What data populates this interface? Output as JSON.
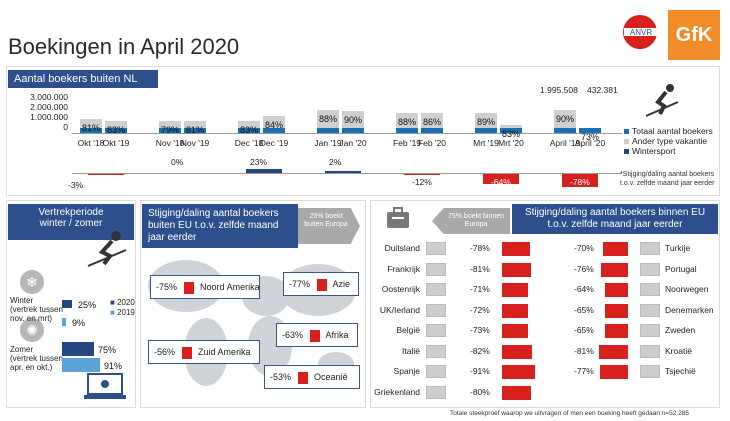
{
  "title": "Boekingen in April 2020",
  "logos": {
    "anvr_ring": "Ondernemers in reizen",
    "anvr": "ANVR",
    "gfk": "GfK"
  },
  "top": {
    "header": "Aantal boekers buiten NL",
    "yticks": [
      "3.000.000",
      "2.000.000",
      "1.000.000",
      "0"
    ],
    "top_values": [
      "1.995.508",
      "432.381"
    ],
    "pairs": [
      {
        "a": "Okt '18",
        "b": "Okt '19",
        "pa": "81%",
        "pb": "83%",
        "ga": 0.34,
        "gb": 0.3
      },
      {
        "a": "Nov '18",
        "b": "Nov '19",
        "pa": "79%",
        "pb": "81%",
        "ga": 0.3,
        "gb": 0.3
      },
      {
        "a": "Dec '18",
        "b": "Dec '19",
        "pa": "83%",
        "pb": "84%",
        "ga": 0.3,
        "gb": 0.42
      },
      {
        "a": "Jan '19",
        "b": "Jan '20",
        "pa": "88%",
        "pb": "90%",
        "ga": 0.58,
        "gb": 0.54
      },
      {
        "a": "Feb '19",
        "b": "Feb '20",
        "pa": "88%",
        "pb": "86%",
        "ga": 0.5,
        "gb": 0.5
      },
      {
        "a": "Mrt '19",
        "b": "Mrt '20",
        "pa": "89%",
        "pb": "83%",
        "ga": 0.5,
        "gb": 0.2
      },
      {
        "a": "April '19",
        "b": "April '20",
        "pa": "90%",
        "pb": "73%",
        "ga": 0.58,
        "gb": 0.12
      }
    ],
    "changes": [
      "-3%",
      "0%",
      "23%",
      "2%",
      "-12%",
      "-64%",
      "-78%"
    ],
    "legend": [
      "Totaal aantal boekers",
      "Ander type vakantie",
      "Wintersport"
    ],
    "legend_colors": [
      "#1b6fb3",
      "#cfcfcf",
      "#24467f"
    ],
    "footnote1": "*Stijging/daling aantal boekers",
    "footnote2": "t.o.v. zelfde maand jaar eerder"
  },
  "left": {
    "header1": "Vertrekperiode",
    "header2": "winter / zomer",
    "winter_title": "Winter",
    "winter_sub1": "(vertrek tussen",
    "winter_sub2": "nov. en mrt)",
    "zomer_title": "Zomer",
    "zomer_sub1": "(vertrek tussen",
    "zomer_sub2": "apr. en okt.)",
    "winter_2020": "25%",
    "winter_2019": "9%",
    "zomer_2020": "75%",
    "zomer_2019": "91%",
    "legend_2020": "2020",
    "legend_2019": "2019"
  },
  "mid": {
    "header": "Stijging/daling aantal boekers buiten EU t.o.v. zelfde maand jaar eerder",
    "note": "25% boekt buiten Europa",
    "regions": [
      {
        "pct": "-75%",
        "name": "Noord Amerika"
      },
      {
        "pct": "-77%",
        "name": "Azie"
      },
      {
        "pct": "-63%",
        "name": "Afrika"
      },
      {
        "pct": "-56%",
        "name": "Zuid Amerika"
      },
      {
        "pct": "-53%",
        "name": "Oceanië"
      }
    ]
  },
  "right": {
    "header": "Stijging/daling aantal boekers binnen EU t.o.v. zelfde maand jaar eerder",
    "note": "75% boekt binnen Europa",
    "left_countries": [
      {
        "name": "Duitsland",
        "pct": "-78%"
      },
      {
        "name": "Frankrijk",
        "pct": "-81%"
      },
      {
        "name": "Oostenrijk",
        "pct": "-71%"
      },
      {
        "name": "UK/Ierland",
        "pct": "-72%"
      },
      {
        "name": "België",
        "pct": "-73%"
      },
      {
        "name": "Italië",
        "pct": "-82%"
      },
      {
        "name": "Spanje",
        "pct": "-91%"
      },
      {
        "name": "Griekenland",
        "pct": "-80%"
      }
    ],
    "right_countries": [
      {
        "name": "Turkije",
        "pct": "-70%"
      },
      {
        "name": "Portugal",
        "pct": "-76%"
      },
      {
        "name": "Noorwegen",
        "pct": "-64%"
      },
      {
        "name": "Denemarken",
        "pct": "-65%"
      },
      {
        "name": "Zweden",
        "pct": "-65%"
      },
      {
        "name": "Kroatië",
        "pct": "-81%"
      },
      {
        "name": "Tsjechië",
        "pct": "-77%"
      }
    ],
    "footer": "Totale steekproef waarop we uitvragen of men een boeking heeft gedaan n=52.285"
  }
}
